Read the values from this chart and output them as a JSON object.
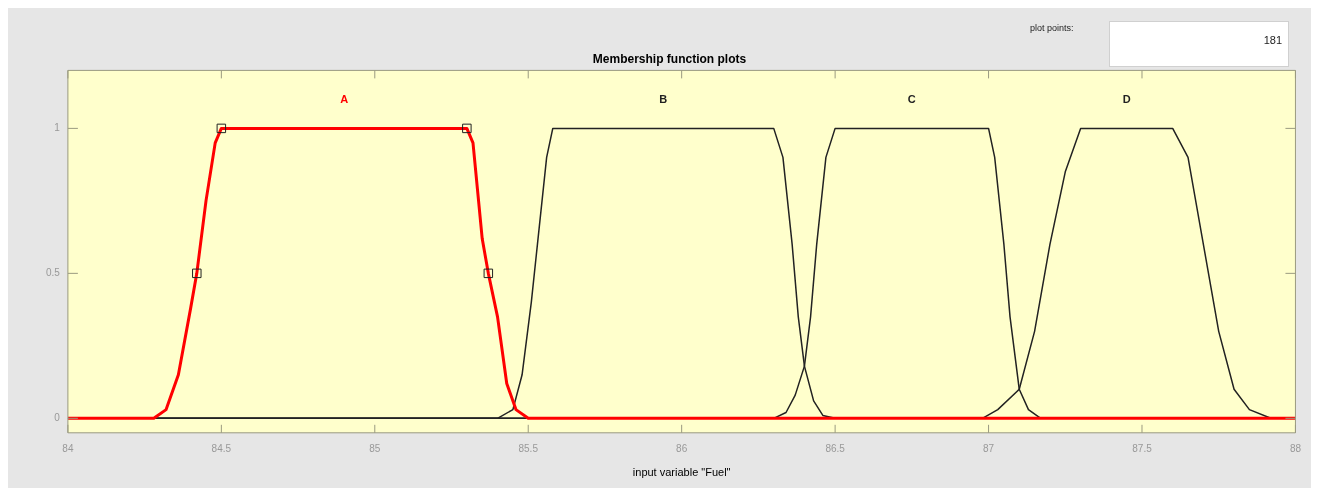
{
  "chart_data": {
    "type": "line",
    "title": "Membership function plots",
    "xlabel": "input variable \"Fuel\"",
    "annotations": [
      "plot points:",
      "181"
    ],
    "xlim": [
      84,
      88
    ],
    "xticks": [
      84,
      84.5,
      85,
      85.5,
      86,
      86.5,
      87,
      87.5,
      88
    ],
    "ylim": [
      -0.05,
      1.2
    ],
    "yticks": [
      0,
      0.5,
      1
    ],
    "grid": false,
    "legend": false,
    "marker": "none",
    "line_style": "solid",
    "series": [
      {
        "name": "A",
        "color": "#ff0000",
        "x": [
          84,
          84.28,
          84.32,
          84.36,
          84.4,
          84.42,
          84.45,
          84.48,
          84.5,
          85.3,
          85.32,
          85.35,
          85.37,
          85.4,
          85.43,
          85.46,
          85.5,
          88
        ],
        "values": [
          0,
          0,
          0.03,
          0.15,
          0.38,
          0.5,
          0.75,
          0.95,
          1,
          1,
          0.95,
          0.62,
          0.5,
          0.35,
          0.12,
          0.03,
          0,
          0
        ]
      },
      {
        "name": "B",
        "color": "#222222",
        "x": [
          84,
          85.4,
          85.45,
          85.48,
          85.51,
          85.53,
          85.56,
          85.58,
          86.3,
          86.33,
          86.36,
          86.38,
          86.4,
          86.43,
          86.46,
          86.5,
          88
        ],
        "values": [
          0,
          0,
          0.03,
          0.15,
          0.4,
          0.6,
          0.9,
          1,
          1,
          0.9,
          0.6,
          0.35,
          0.18,
          0.06,
          0.01,
          0,
          0
        ]
      },
      {
        "name": "C",
        "color": "#222222",
        "x": [
          84,
          86.3,
          86.34,
          86.37,
          86.4,
          86.42,
          86.44,
          86.47,
          86.5,
          87,
          87.02,
          87.05,
          87.07,
          87.1,
          87.13,
          87.17,
          88
        ],
        "values": [
          0,
          0,
          0.02,
          0.08,
          0.18,
          0.35,
          0.6,
          0.9,
          1,
          1,
          0.9,
          0.6,
          0.35,
          0.1,
          0.03,
          0,
          0
        ]
      },
      {
        "name": "D",
        "color": "#222222",
        "x": [
          84,
          86.98,
          87.03,
          87.1,
          87.15,
          87.2,
          87.25,
          87.3,
          87.6,
          87.65,
          87.7,
          87.75,
          87.8,
          87.85,
          87.92,
          88
        ],
        "values": [
          0,
          0,
          0.03,
          0.1,
          0.3,
          0.6,
          0.85,
          1,
          1,
          0.9,
          0.6,
          0.3,
          0.1,
          0.03,
          0,
          0
        ]
      },
      {
        "type": "scatter",
        "marker": "square",
        "color": "#222222",
        "x": [
          84.42,
          84.5,
          85.3,
          85.37
        ],
        "values": [
          0.5,
          1,
          1,
          0.5
        ]
      }
    ]
  }
}
